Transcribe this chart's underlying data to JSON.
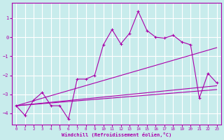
{
  "xlabel": "Windchill (Refroidissement éolien,°C)",
  "background_color": "#c8ecec",
  "grid_color": "#ffffff",
  "line_color": "#aa00aa",
  "xlim": [
    -0.5,
    23.5
  ],
  "ylim": [
    -4.6,
    1.8
  ],
  "yticks": [
    1,
    0,
    -1,
    -2,
    -3,
    -4
  ],
  "xticks": [
    0,
    1,
    2,
    3,
    4,
    5,
    6,
    7,
    8,
    9,
    10,
    11,
    12,
    13,
    14,
    15,
    16,
    17,
    18,
    19,
    20,
    21,
    22,
    23
  ],
  "main_x": [
    0,
    1,
    2,
    3,
    4,
    5,
    6,
    7,
    8,
    9,
    10,
    11,
    12,
    13,
    14,
    15,
    16,
    17,
    18,
    19,
    20,
    21,
    22,
    23
  ],
  "main_y": [
    -3.6,
    -4.1,
    -3.3,
    -2.9,
    -3.6,
    -3.6,
    -4.3,
    -2.2,
    -2.2,
    -2.0,
    -0.4,
    0.4,
    -0.35,
    0.2,
    1.35,
    0.35,
    0.0,
    -0.05,
    0.1,
    -0.25,
    -0.4,
    -3.2,
    -1.9,
    -2.4
  ],
  "trend1_x": [
    0,
    23
  ],
  "trend1_y": [
    -3.6,
    -0.55
  ],
  "trend2_x": [
    0,
    23
  ],
  "trend2_y": [
    -3.6,
    -2.55
  ],
  "trend3_x": [
    0,
    23
  ],
  "trend3_y": [
    -3.6,
    -2.75
  ]
}
